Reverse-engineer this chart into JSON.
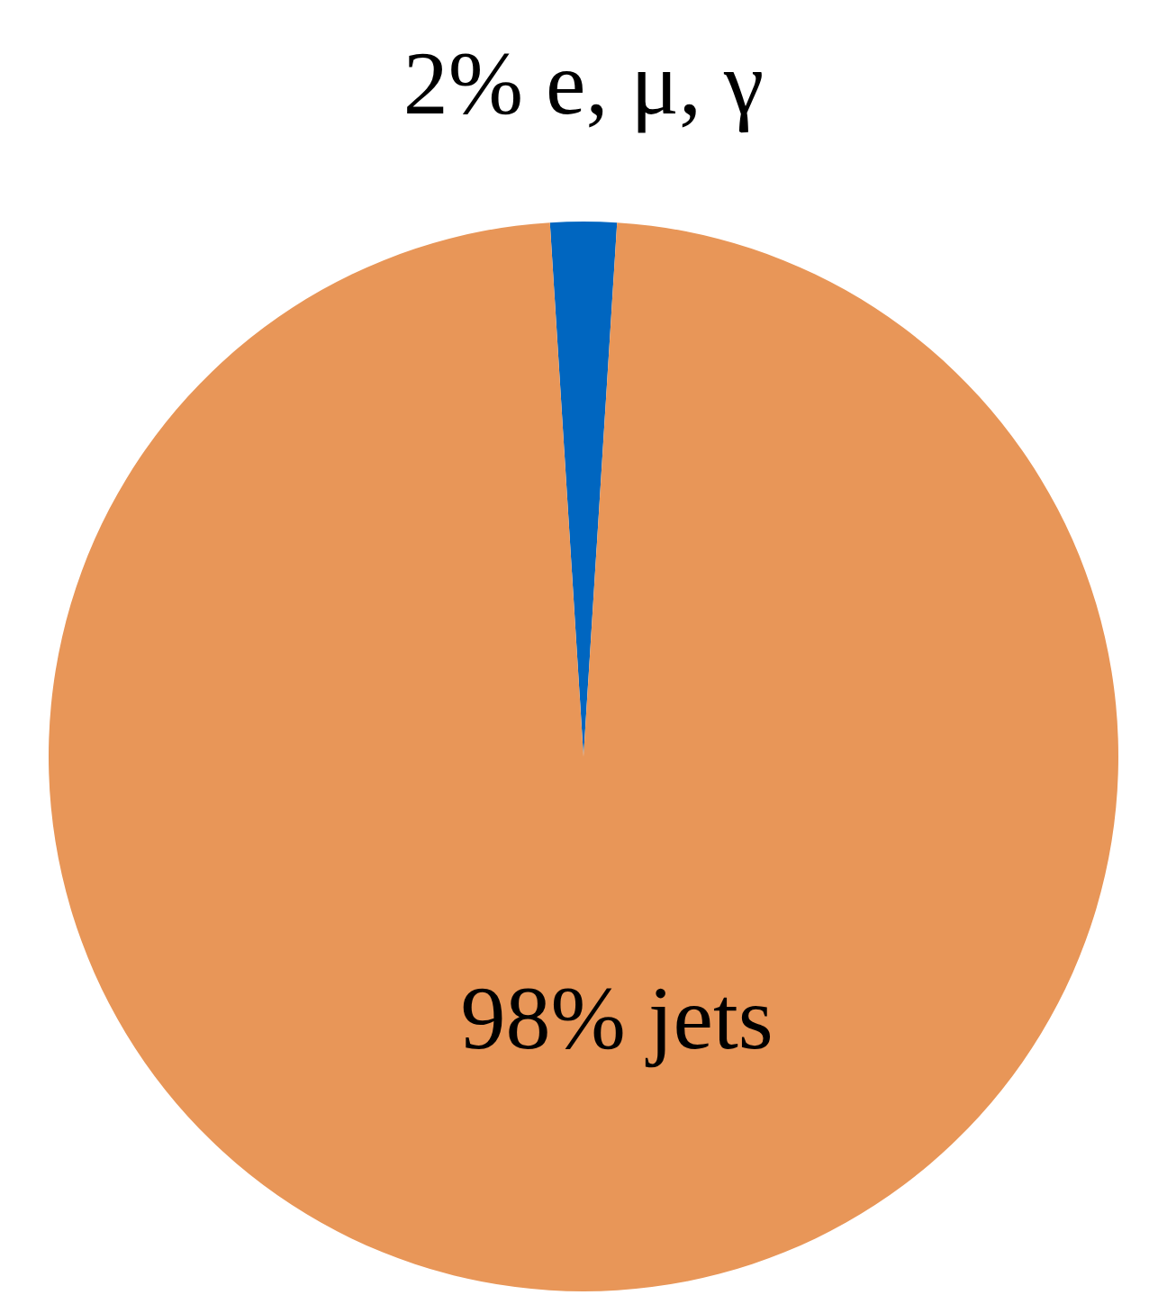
{
  "chart_data": {
    "type": "pie",
    "categories": [
      "e, μ, γ",
      "jets"
    ],
    "values": [
      2,
      98
    ],
    "colors": [
      "#0066c0",
      "#e89658"
    ],
    "value_labels": [
      "2%",
      "98%"
    ]
  }
}
